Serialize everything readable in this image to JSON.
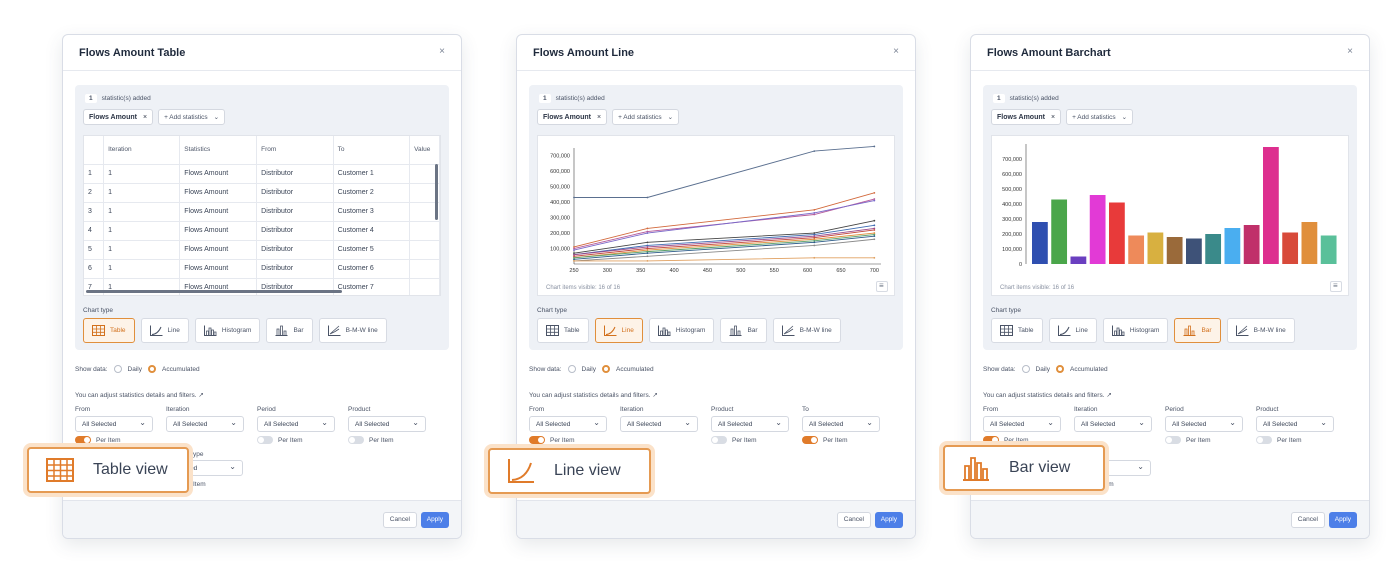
{
  "common": {
    "statistics_count": "1",
    "statistics_added": "statistic(s) added",
    "chip_label": "Flows Amount",
    "chip_close": "×",
    "add_statistics": "+ Add statistics",
    "chart_type_label": "Chart type",
    "chart_types": [
      "Table",
      "Line",
      "Histogram",
      "Bar",
      "B-M-W line"
    ],
    "show_data_label": "Show data:",
    "daily": "Daily",
    "accumulated": "Accumulated",
    "adjust_text": "You can adjust statistics details and filters.",
    "adjust_arrow": "↗",
    "all_selected": "All Selected",
    "per_item": "Per Item",
    "cancel": "Cancel",
    "apply": "Apply",
    "close": "×",
    "chart_items_visible": "Chart items visible: 16 of 16",
    "chart_items_visible_bar": "Chart items visible: 16 of 16"
  },
  "panel_table": {
    "title": "Flows Amount Table",
    "filters": [
      "From",
      "Iteration",
      "Period",
      "Product"
    ],
    "extra_filter_type": "ype",
    "extra_select": "Selected",
    "extra_per_item": "Item",
    "columns": [
      "",
      "Iteration",
      "Statistics",
      "From",
      "To",
      "Value"
    ],
    "rows": [
      [
        "1",
        "1",
        "Flows Amount",
        "Distributor",
        "Customer 1"
      ],
      [
        "2",
        "1",
        "Flows Amount",
        "Distributor",
        "Customer 2"
      ],
      [
        "3",
        "1",
        "Flows Amount",
        "Distributor",
        "Customer 3"
      ],
      [
        "4",
        "1",
        "Flows Amount",
        "Distributor",
        "Customer 4"
      ],
      [
        "5",
        "1",
        "Flows Amount",
        "Distributor",
        "Customer 5"
      ],
      [
        "6",
        "1",
        "Flows Amount",
        "Distributor",
        "Customer 6"
      ],
      [
        "7",
        "1",
        "Flows Amount",
        "Distributor",
        "Customer 7"
      ]
    ]
  },
  "panel_line": {
    "title": "Flows Amount Line",
    "filters": [
      "From",
      "Iteration",
      "Product",
      "To"
    ],
    "y_ticks": [
      "700,000",
      "600,000",
      "500,000",
      "400,000",
      "300,000",
      "200,000",
      "100,000"
    ],
    "x_ticks": [
      "250",
      "300",
      "350",
      "400",
      "450",
      "500",
      "550",
      "600",
      "650",
      "700"
    ]
  },
  "panel_bar": {
    "title": "Flows Amount Barchart",
    "filters": [
      "From",
      "Iteration",
      "Period",
      "Product"
    ],
    "extra_select": "Selected",
    "extra_per_item": "Item",
    "y_ticks": [
      "700,000",
      "600,000",
      "500,000",
      "400,000",
      "300,000",
      "200,000",
      "100,000",
      "0"
    ]
  },
  "callouts": {
    "table": "Table view",
    "line": "Line view",
    "bar": "Bar view"
  },
  "colors": {
    "accent": "#e08f3c",
    "apply": "#4d7fe8"
  },
  "chart_data": [
    {
      "type": "line",
      "x": [
        250,
        360,
        610,
        700
      ],
      "ylim": [
        0,
        750000
      ],
      "series": [
        {
          "values": [
            430000,
            430000,
            730000,
            760000
          ]
        },
        {
          "values": [
            110000,
            230000,
            350000,
            460000
          ]
        },
        {
          "values": [
            100000,
            210000,
            320000,
            420000
          ]
        },
        {
          "values": [
            90000,
            200000,
            330000,
            410000
          ]
        },
        {
          "values": [
            70000,
            140000,
            200000,
            280000
          ]
        },
        {
          "values": [
            60000,
            120000,
            190000,
            250000
          ]
        },
        {
          "values": [
            60000,
            110000,
            180000,
            230000
          ]
        },
        {
          "values": [
            50000,
            100000,
            170000,
            220000
          ]
        },
        {
          "values": [
            40000,
            90000,
            160000,
            200000
          ]
        },
        {
          "values": [
            40000,
            80000,
            150000,
            190000
          ]
        },
        {
          "values": [
            30000,
            70000,
            140000,
            180000
          ]
        },
        {
          "values": [
            20000,
            50000,
            120000,
            160000
          ]
        },
        {
          "values": [
            20000,
            20000,
            40000,
            40000
          ]
        }
      ]
    },
    {
      "type": "bar",
      "ylim": [
        0,
        800000
      ],
      "values": [
        280000,
        430000,
        50000,
        460000,
        410000,
        190000,
        210000,
        180000,
        170000,
        200000,
        240000,
        260000,
        780000,
        210000,
        280000,
        190000
      ]
    }
  ]
}
